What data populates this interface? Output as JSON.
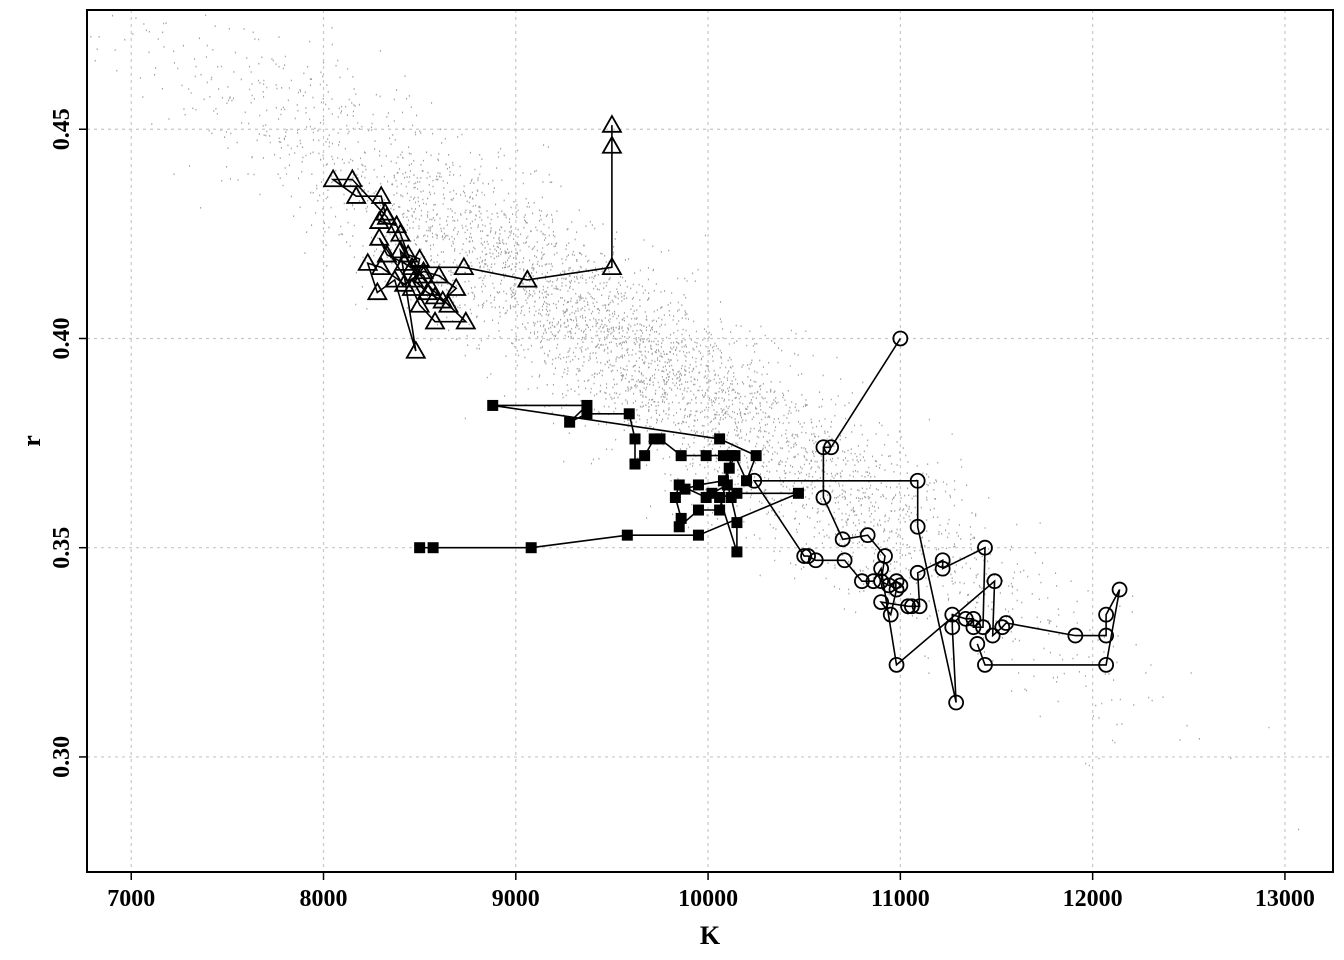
{
  "chart_data": {
    "type": "scatter",
    "title": "",
    "xlabel": "K",
    "ylabel": "r",
    "xlim": [
      6770,
      13250
    ],
    "ylim": [
      0.2725,
      0.4785
    ],
    "xticks": [
      7000,
      8000,
      9000,
      10000,
      11000,
      12000,
      13000
    ],
    "xtick_labels": [
      "7000",
      "8000",
      "9000",
      "10000",
      "11000",
      "12000",
      "13000"
    ],
    "yticks": [
      0.3,
      0.35,
      0.4,
      0.45
    ],
    "ytick_labels": [
      "0.30",
      "0.35",
      "0.40",
      "0.45"
    ],
    "grid": true,
    "background_cloud": {
      "color": "#a0a0a0",
      "description_of_trend": "dense negatively correlated cloud of posterior samples",
      "centerline": [
        [
          7300,
          0.465
        ],
        [
          13200,
          0.29
        ]
      ],
      "spread_r": 0.011
    },
    "series": [
      {
        "marker": "triangle-open",
        "color": "#000000",
        "points": [
          [
            9500,
            0.451
          ],
          [
            9500,
            0.446
          ],
          [
            9500,
            0.417
          ],
          [
            9060,
            0.414
          ],
          [
            8730,
            0.417
          ],
          [
            8460,
            0.417
          ],
          [
            8330,
            0.429
          ],
          [
            8150,
            0.438
          ],
          [
            8050,
            0.438
          ],
          [
            8170,
            0.434
          ],
          [
            8300,
            0.434
          ],
          [
            8320,
            0.43
          ],
          [
            8290,
            0.428
          ],
          [
            8380,
            0.427
          ],
          [
            8400,
            0.425
          ],
          [
            8440,
            0.42
          ],
          [
            8500,
            0.419
          ],
          [
            8470,
            0.414
          ],
          [
            8540,
            0.411
          ],
          [
            8620,
            0.409
          ],
          [
            8690,
            0.412
          ],
          [
            8600,
            0.415
          ],
          [
            8520,
            0.416
          ],
          [
            8420,
            0.413
          ],
          [
            8300,
            0.417
          ],
          [
            8230,
            0.418
          ],
          [
            8280,
            0.411
          ],
          [
            8370,
            0.414
          ],
          [
            8480,
            0.397
          ],
          [
            8400,
            0.421
          ],
          [
            8560,
            0.412
          ],
          [
            8650,
            0.408
          ],
          [
            8740,
            0.404
          ],
          [
            8580,
            0.404
          ],
          [
            8500,
            0.408
          ],
          [
            8460,
            0.412
          ],
          [
            8290,
            0.424
          ],
          [
            8330,
            0.42
          ],
          [
            8420,
            0.418
          ],
          [
            8520,
            0.415
          ],
          [
            8580,
            0.41
          ]
        ]
      },
      {
        "marker": "square-filled",
        "color": "#000000",
        "points": [
          [
            8500,
            0.35
          ],
          [
            8570,
            0.35
          ],
          [
            9080,
            0.35
          ],
          [
            9580,
            0.353
          ],
          [
            9950,
            0.353
          ],
          [
            10470,
            0.363
          ],
          [
            10150,
            0.363
          ],
          [
            10060,
            0.362
          ],
          [
            10150,
            0.349
          ],
          [
            10150,
            0.356
          ],
          [
            10120,
            0.362
          ],
          [
            10100,
            0.365
          ],
          [
            10020,
            0.363
          ],
          [
            9990,
            0.362
          ],
          [
            9850,
            0.365
          ],
          [
            9830,
            0.362
          ],
          [
            9860,
            0.357
          ],
          [
            9850,
            0.355
          ],
          [
            9950,
            0.359
          ],
          [
            10060,
            0.359
          ],
          [
            10110,
            0.369
          ],
          [
            10120,
            0.372
          ],
          [
            10080,
            0.372
          ],
          [
            9990,
            0.372
          ],
          [
            9860,
            0.372
          ],
          [
            9750,
            0.376
          ],
          [
            9720,
            0.376
          ],
          [
            9670,
            0.372
          ],
          [
            9620,
            0.37
          ],
          [
            9620,
            0.376
          ],
          [
            9590,
            0.382
          ],
          [
            9370,
            0.382
          ],
          [
            9280,
            0.38
          ],
          [
            9370,
            0.384
          ],
          [
            8880,
            0.384
          ],
          [
            10060,
            0.376
          ],
          [
            10250,
            0.372
          ],
          [
            10200,
            0.366
          ],
          [
            10140,
            0.372
          ],
          [
            10080,
            0.366
          ],
          [
            9950,
            0.365
          ],
          [
            9880,
            0.364
          ]
        ]
      },
      {
        "marker": "circle-open",
        "color": "#000000",
        "points": [
          [
            11000,
            0.4
          ],
          [
            10640,
            0.374
          ],
          [
            10600,
            0.374
          ],
          [
            10600,
            0.362
          ],
          [
            10700,
            0.352
          ],
          [
            10830,
            0.353
          ],
          [
            10920,
            0.348
          ],
          [
            10900,
            0.342
          ],
          [
            10940,
            0.341
          ],
          [
            10980,
            0.342
          ],
          [
            11000,
            0.341
          ],
          [
            10980,
            0.34
          ],
          [
            10950,
            0.334
          ],
          [
            10900,
            0.337
          ],
          [
            11040,
            0.336
          ],
          [
            11060,
            0.336
          ],
          [
            11100,
            0.336
          ],
          [
            11090,
            0.344
          ],
          [
            11220,
            0.347
          ],
          [
            11220,
            0.345
          ],
          [
            11440,
            0.35
          ],
          [
            11430,
            0.331
          ],
          [
            11380,
            0.331
          ],
          [
            11380,
            0.333
          ],
          [
            11340,
            0.333
          ],
          [
            11270,
            0.334
          ],
          [
            11270,
            0.331
          ],
          [
            11290,
            0.313
          ],
          [
            11090,
            0.355
          ],
          [
            11090,
            0.366
          ],
          [
            10240,
            0.366
          ],
          [
            10500,
            0.348
          ],
          [
            10520,
            0.348
          ],
          [
            10560,
            0.347
          ],
          [
            10710,
            0.347
          ],
          [
            10800,
            0.342
          ],
          [
            10860,
            0.342
          ],
          [
            10900,
            0.345
          ],
          [
            10980,
            0.322
          ],
          [
            11490,
            0.342
          ],
          [
            11480,
            0.329
          ],
          [
            11530,
            0.331
          ],
          [
            11550,
            0.332
          ],
          [
            11910,
            0.329
          ],
          [
            12070,
            0.329
          ],
          [
            12070,
            0.334
          ],
          [
            12140,
            0.34
          ],
          [
            12070,
            0.322
          ],
          [
            11440,
            0.322
          ],
          [
            11400,
            0.327
          ]
        ]
      }
    ]
  }
}
